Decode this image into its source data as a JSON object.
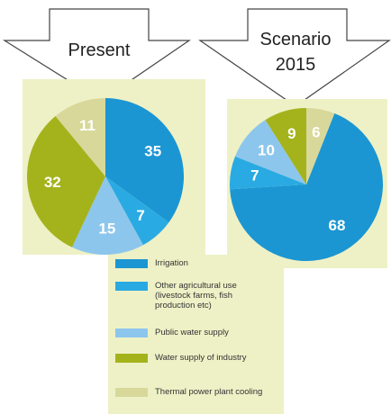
{
  "chart_data": [
    {
      "type": "pie",
      "title": "Present",
      "categories": [
        "Irrigation",
        "Other agricultural use (livestock farms, fish production etc)",
        "Public water supply",
        "Water supply of industry",
        "Thermal power plant cooling"
      ],
      "values": [
        35,
        7,
        15,
        32,
        11
      ],
      "colors": [
        "#1b96d2",
        "#2aaae2",
        "#8dc6ec",
        "#a4b31c",
        "#d8d89a"
      ]
    },
    {
      "type": "pie",
      "title": "Scenario 2015",
      "categories": [
        "Irrigation",
        "Other agricultural use (livestock farms, fish production etc)",
        "Public water supply",
        "Water supply of industry",
        "Thermal power plant cooling"
      ],
      "values": [
        68,
        7,
        10,
        9,
        6
      ],
      "colors": [
        "#1b96d2",
        "#2aaae2",
        "#8dc6ec",
        "#a4b31c",
        "#d8d89a"
      ]
    }
  ]
}
